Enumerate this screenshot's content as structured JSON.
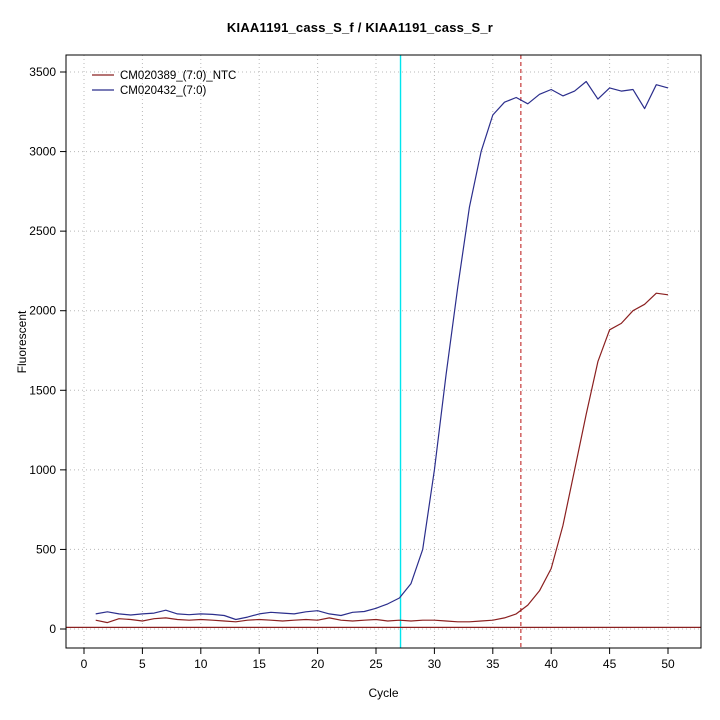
{
  "chart_data": {
    "type": "line",
    "title": "KIAA1191_cass_S_f / KIAA1191_cass_S_r",
    "xlabel": "Cycle",
    "ylabel": "Fluorescent",
    "xlim": [
      0,
      50
    ],
    "ylim": [
      0,
      3500
    ],
    "xticks": [
      0,
      5,
      10,
      15,
      20,
      25,
      30,
      35,
      40,
      45,
      50
    ],
    "yticks": [
      0,
      500,
      1000,
      1500,
      2000,
      2500,
      3000,
      3500
    ],
    "grid": true,
    "grid_color": "#b8b8b8",
    "legend_position": "top-left",
    "threshold": 10,
    "threshold_color": "#8b2020",
    "vlines": [
      {
        "x": 27.1,
        "color": "#00e5ee",
        "style": "solid",
        "name": "ct-marker-cyan"
      },
      {
        "x": 37.4,
        "color": "#cd5555",
        "style": "dashed",
        "name": "ct-marker-red"
      }
    ],
    "x": [
      1,
      2,
      3,
      4,
      5,
      6,
      7,
      8,
      9,
      10,
      11,
      12,
      13,
      14,
      15,
      16,
      17,
      18,
      19,
      20,
      21,
      22,
      23,
      24,
      25,
      26,
      27,
      28,
      29,
      30,
      31,
      32,
      33,
      34,
      35,
      36,
      37,
      38,
      39,
      40,
      41,
      42,
      43,
      44,
      45,
      46,
      47,
      48,
      49,
      50
    ],
    "series": [
      {
        "name": "CM020389_(7:0)_NTC",
        "color": "#8b2020",
        "values": [
          55,
          40,
          65,
          60,
          50,
          65,
          70,
          60,
          55,
          60,
          55,
          50,
          45,
          55,
          60,
          55,
          50,
          55,
          60,
          55,
          70,
          55,
          50,
          55,
          60,
          50,
          55,
          50,
          55,
          55,
          50,
          45,
          45,
          50,
          55,
          70,
          95,
          150,
          240,
          380,
          650,
          1000,
          1350,
          1680,
          1880,
          1920,
          2000,
          2040,
          2110,
          2100
        ]
      },
      {
        "name": "CM020432_(7:0)",
        "color": "#2b2e8c",
        "values": [
          95,
          108,
          95,
          88,
          95,
          100,
          118,
          95,
          90,
          95,
          92,
          85,
          60,
          75,
          95,
          105,
          100,
          95,
          108,
          115,
          95,
          85,
          105,
          110,
          130,
          158,
          195,
          285,
          500,
          1000,
          1600,
          2150,
          2650,
          3000,
          3230,
          3310,
          3340,
          3300,
          3360,
          3390,
          3350,
          3380,
          3440,
          3330,
          3400,
          3380,
          3390,
          3270,
          3420,
          3400
        ]
      }
    ]
  }
}
